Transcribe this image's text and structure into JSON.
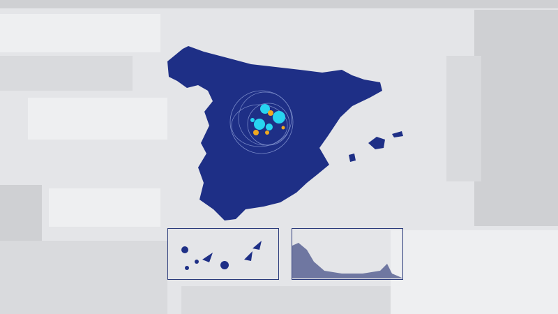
{
  "map": {
    "land_color": "#1e2f86",
    "highlight_colors": {
      "cyan": "#28d4f0",
      "orange": "#f0a820"
    },
    "frame_color": "#2a3a7a",
    "background_color": "#e4e5e8",
    "insets": [
      "canary-islands",
      "ceuta-melilla-coast"
    ]
  }
}
